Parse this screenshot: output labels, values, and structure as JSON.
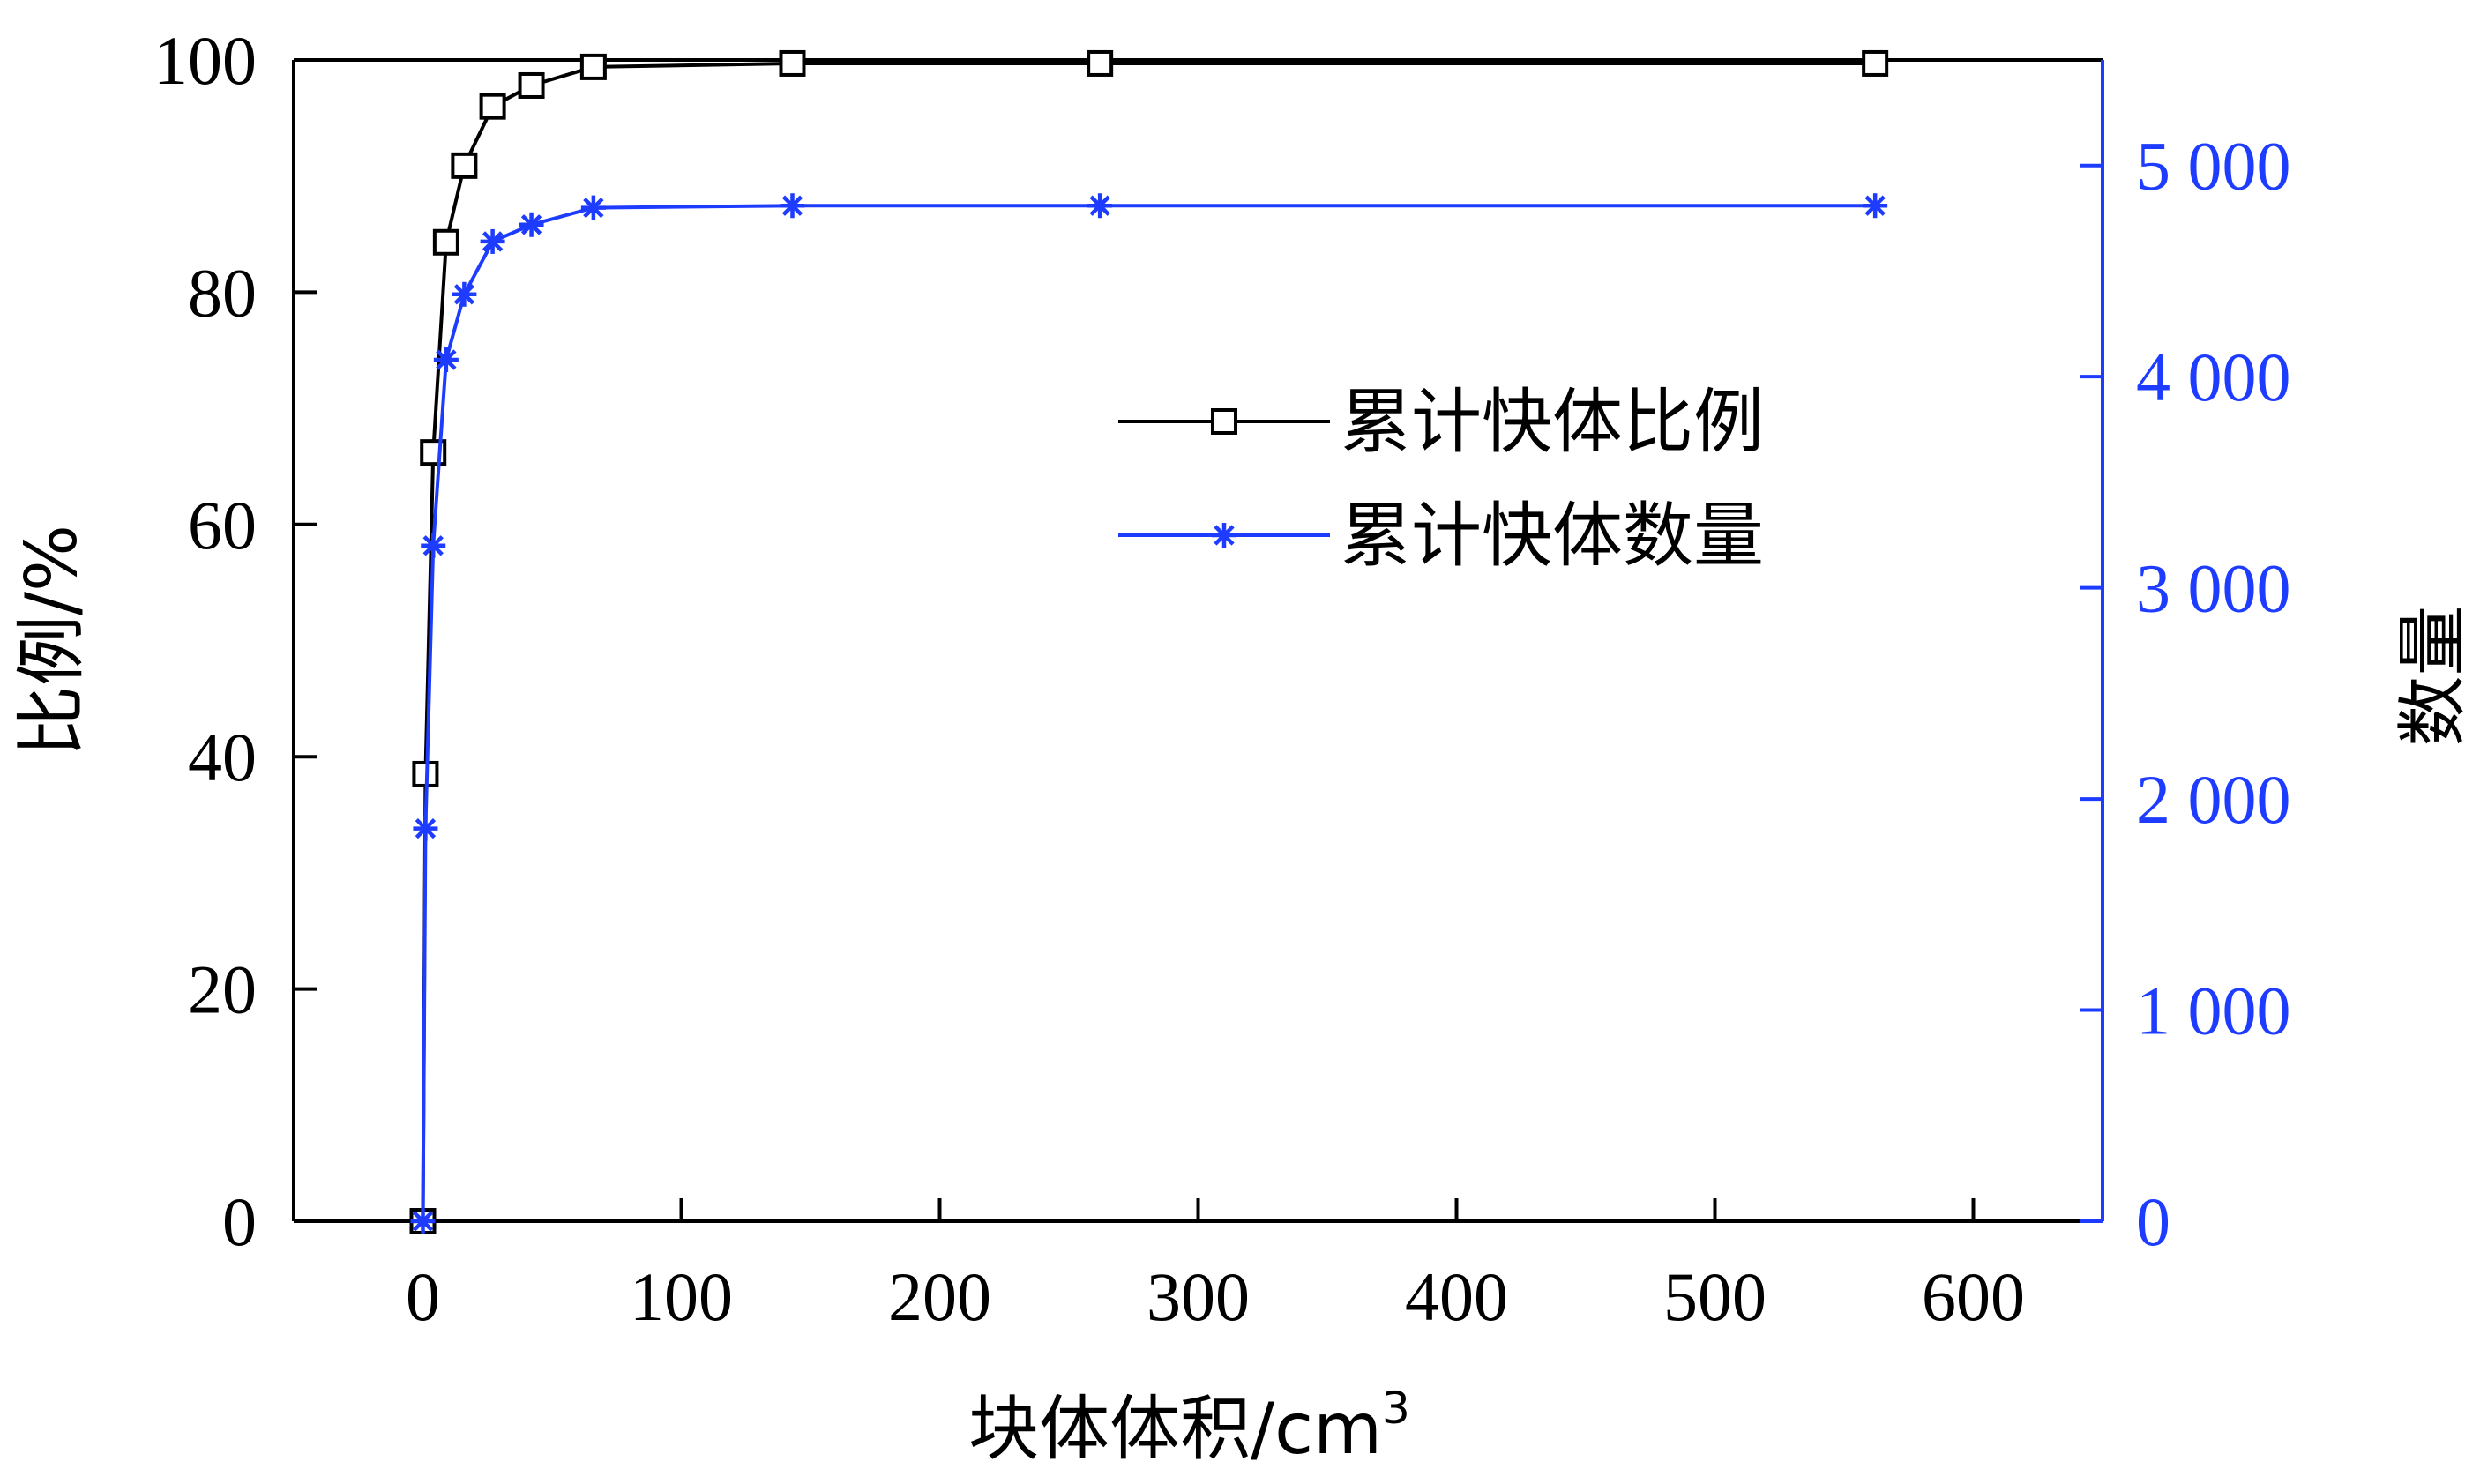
{
  "chart_data": {
    "type": "line",
    "title": "",
    "xlabel": "块体体积/cm",
    "xlabel_sup": "3",
    "ylabel_left": "比例/%",
    "ylabel_right": "数量",
    "xlim": [
      -50,
      650
    ],
    "ylim_left": [
      0,
      100
    ],
    "ylim_right": [
      0,
      5500
    ],
    "x_ticks": [
      0,
      100,
      200,
      300,
      400,
      500,
      600
    ],
    "x_tick_labels": [
      "0",
      "100",
      "200",
      "300",
      "400",
      "500",
      "600"
    ],
    "y_left_ticks": [
      0,
      20,
      40,
      60,
      80,
      100
    ],
    "y_left_tick_labels": [
      "0",
      "20",
      "40",
      "60",
      "80",
      "100"
    ],
    "y_right_ticks": [
      0,
      1000,
      2000,
      3000,
      4000,
      5000
    ],
    "y_right_tick_labels": [
      "0",
      "1 000",
      "2 000",
      "3 000",
      "4 000",
      "5 000"
    ],
    "legend_position": "center-right",
    "grid": false,
    "series": [
      {
        "name": "累计快体比例",
        "axis": "left",
        "color": "#000000",
        "marker": "square",
        "x": [
          0,
          1,
          4,
          9,
          16,
          27,
          42,
          66,
          143,
          262,
          562
        ],
        "y": [
          0,
          38.5,
          66.2,
          84.3,
          90.9,
          96.0,
          97.8,
          99.4,
          99.7,
          99.7,
          99.7
        ]
      },
      {
        "name": "累计快体数量",
        "axis": "right",
        "color": "#1e3cff",
        "marker": "asterisk",
        "x": [
          0,
          1,
          4,
          9,
          16,
          27,
          42,
          66,
          143,
          262,
          562
        ],
        "y": [
          0,
          1860,
          3200,
          4080,
          4390,
          4640,
          4720,
          4800,
          4810,
          4810,
          4810
        ]
      }
    ]
  }
}
